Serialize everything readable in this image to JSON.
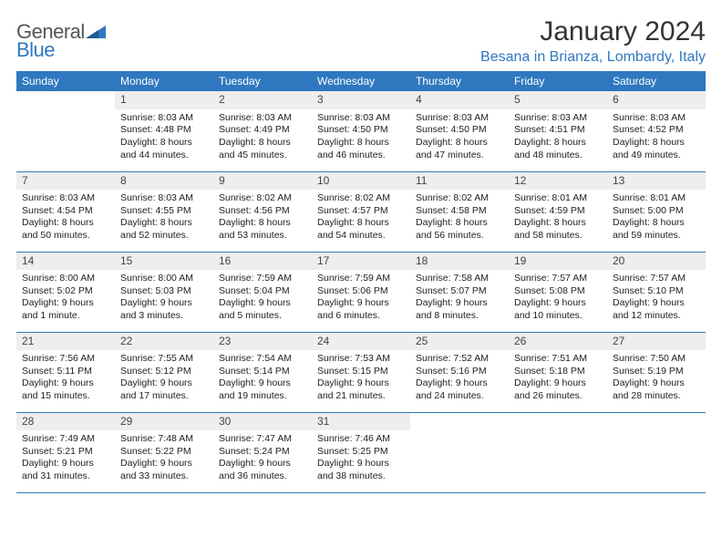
{
  "logo": {
    "word1": "General",
    "word2": "Blue"
  },
  "title": "January 2024",
  "subtitle": "Besana in Brianza, Lombardy, Italy",
  "colors": {
    "accent": "#2f78bf",
    "header_bg": "#2f78bf",
    "header_text": "#ffffff",
    "daynum_bg": "#eeeeee",
    "cell_border": "#2f78bf",
    "body_text": "#222222",
    "background": "#ffffff"
  },
  "weekdays": [
    "Sunday",
    "Monday",
    "Tuesday",
    "Wednesday",
    "Thursday",
    "Friday",
    "Saturday"
  ],
  "weeks": [
    [
      null,
      {
        "n": "1",
        "sr": "8:03 AM",
        "ss": "4:48 PM",
        "dl": "8 hours and 44 minutes."
      },
      {
        "n": "2",
        "sr": "8:03 AM",
        "ss": "4:49 PM",
        "dl": "8 hours and 45 minutes."
      },
      {
        "n": "3",
        "sr": "8:03 AM",
        "ss": "4:50 PM",
        "dl": "8 hours and 46 minutes."
      },
      {
        "n": "4",
        "sr": "8:03 AM",
        "ss": "4:50 PM",
        "dl": "8 hours and 47 minutes."
      },
      {
        "n": "5",
        "sr": "8:03 AM",
        "ss": "4:51 PM",
        "dl": "8 hours and 48 minutes."
      },
      {
        "n": "6",
        "sr": "8:03 AM",
        "ss": "4:52 PM",
        "dl": "8 hours and 49 minutes."
      }
    ],
    [
      {
        "n": "7",
        "sr": "8:03 AM",
        "ss": "4:54 PM",
        "dl": "8 hours and 50 minutes."
      },
      {
        "n": "8",
        "sr": "8:03 AM",
        "ss": "4:55 PM",
        "dl": "8 hours and 52 minutes."
      },
      {
        "n": "9",
        "sr": "8:02 AM",
        "ss": "4:56 PM",
        "dl": "8 hours and 53 minutes."
      },
      {
        "n": "10",
        "sr": "8:02 AM",
        "ss": "4:57 PM",
        "dl": "8 hours and 54 minutes."
      },
      {
        "n": "11",
        "sr": "8:02 AM",
        "ss": "4:58 PM",
        "dl": "8 hours and 56 minutes."
      },
      {
        "n": "12",
        "sr": "8:01 AM",
        "ss": "4:59 PM",
        "dl": "8 hours and 58 minutes."
      },
      {
        "n": "13",
        "sr": "8:01 AM",
        "ss": "5:00 PM",
        "dl": "8 hours and 59 minutes."
      }
    ],
    [
      {
        "n": "14",
        "sr": "8:00 AM",
        "ss": "5:02 PM",
        "dl": "9 hours and 1 minute."
      },
      {
        "n": "15",
        "sr": "8:00 AM",
        "ss": "5:03 PM",
        "dl": "9 hours and 3 minutes."
      },
      {
        "n": "16",
        "sr": "7:59 AM",
        "ss": "5:04 PM",
        "dl": "9 hours and 5 minutes."
      },
      {
        "n": "17",
        "sr": "7:59 AM",
        "ss": "5:06 PM",
        "dl": "9 hours and 6 minutes."
      },
      {
        "n": "18",
        "sr": "7:58 AM",
        "ss": "5:07 PM",
        "dl": "9 hours and 8 minutes."
      },
      {
        "n": "19",
        "sr": "7:57 AM",
        "ss": "5:08 PM",
        "dl": "9 hours and 10 minutes."
      },
      {
        "n": "20",
        "sr": "7:57 AM",
        "ss": "5:10 PM",
        "dl": "9 hours and 12 minutes."
      }
    ],
    [
      {
        "n": "21",
        "sr": "7:56 AM",
        "ss": "5:11 PM",
        "dl": "9 hours and 15 minutes."
      },
      {
        "n": "22",
        "sr": "7:55 AM",
        "ss": "5:12 PM",
        "dl": "9 hours and 17 minutes."
      },
      {
        "n": "23",
        "sr": "7:54 AM",
        "ss": "5:14 PM",
        "dl": "9 hours and 19 minutes."
      },
      {
        "n": "24",
        "sr": "7:53 AM",
        "ss": "5:15 PM",
        "dl": "9 hours and 21 minutes."
      },
      {
        "n": "25",
        "sr": "7:52 AM",
        "ss": "5:16 PM",
        "dl": "9 hours and 24 minutes."
      },
      {
        "n": "26",
        "sr": "7:51 AM",
        "ss": "5:18 PM",
        "dl": "9 hours and 26 minutes."
      },
      {
        "n": "27",
        "sr": "7:50 AM",
        "ss": "5:19 PM",
        "dl": "9 hours and 28 minutes."
      }
    ],
    [
      {
        "n": "28",
        "sr": "7:49 AM",
        "ss": "5:21 PM",
        "dl": "9 hours and 31 minutes."
      },
      {
        "n": "29",
        "sr": "7:48 AM",
        "ss": "5:22 PM",
        "dl": "9 hours and 33 minutes."
      },
      {
        "n": "30",
        "sr": "7:47 AM",
        "ss": "5:24 PM",
        "dl": "9 hours and 36 minutes."
      },
      {
        "n": "31",
        "sr": "7:46 AM",
        "ss": "5:25 PM",
        "dl": "9 hours and 38 minutes."
      },
      null,
      null,
      null
    ]
  ],
  "labels": {
    "sunrise": "Sunrise:",
    "sunset": "Sunset:",
    "daylight": "Daylight:"
  }
}
